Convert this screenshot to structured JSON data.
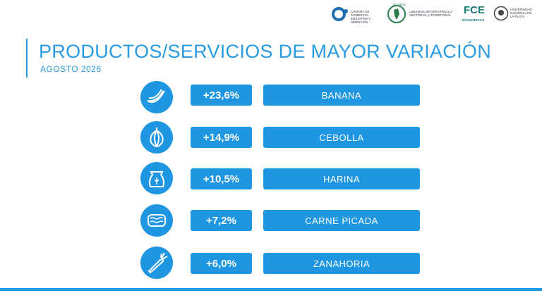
{
  "header": {
    "logos": [
      "CÁMARA DE COMERCIO, INDUSTRIA Y SERVICIOS",
      "10 AÑOS",
      "Laboratorio de DESARROLLO SECTORIAL y TERRITORIAL",
      "FCE",
      "ECONÓMICAS",
      "UNIVERSIDAD NACIONAL DE LA PLATA"
    ]
  },
  "title": "PRODUCTOS/SERVICIOS DE MAYOR VARIACIÓN",
  "subtitle": "AGOSTO 2026",
  "items": [
    {
      "variation": "+23,6%",
      "product": "BANANA"
    },
    {
      "variation": "+14,9%",
      "product": "CEBOLLA"
    },
    {
      "variation": "+10,5%",
      "product": "HARINA"
    },
    {
      "variation": "+7,2%",
      "product": "CARNE PICADA"
    },
    {
      "variation": "+6,0%",
      "product": "ZANAHORIA"
    }
  ]
}
